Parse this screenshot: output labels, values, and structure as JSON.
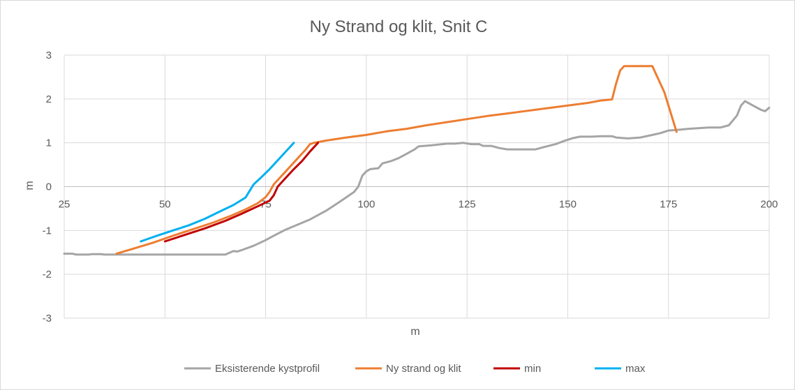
{
  "chart_data": {
    "type": "line",
    "title": "Ny Strand og klit, Snit C",
    "xlabel": "m",
    "ylabel": "m",
    "xlim": [
      25,
      200
    ],
    "ylim": [
      -3,
      3
    ],
    "x_ticks": [
      25,
      50,
      75,
      100,
      125,
      150,
      175,
      200
    ],
    "y_ticks": [
      3,
      2,
      1,
      0,
      -1,
      -2,
      -3
    ],
    "grid": true,
    "legend_position": "bottom",
    "colors": {
      "existing": "#a5a5a5",
      "new": "#ed7d31",
      "min": "#c00000",
      "max": "#00b0f0",
      "grid": "#d9d9d9"
    },
    "series": [
      {
        "name": "Eksisterende kystprofil",
        "color": "#a5a5a5",
        "points": [
          [
            25,
            -1.53
          ],
          [
            27,
            -1.53
          ],
          [
            28,
            -1.55
          ],
          [
            31,
            -1.55
          ],
          [
            32,
            -1.54
          ],
          [
            34,
            -1.54
          ],
          [
            35,
            -1.55
          ],
          [
            50,
            -1.55
          ],
          [
            65,
            -1.55
          ],
          [
            67,
            -1.47
          ],
          [
            68,
            -1.48
          ],
          [
            69,
            -1.45
          ],
          [
            72,
            -1.35
          ],
          [
            75,
            -1.22
          ],
          [
            77,
            -1.12
          ],
          [
            80,
            -0.98
          ],
          [
            86,
            -0.75
          ],
          [
            90,
            -0.55
          ],
          [
            93,
            -0.37
          ],
          [
            97,
            -0.12
          ],
          [
            98,
            0.0
          ],
          [
            99,
            0.25
          ],
          [
            100,
            0.35
          ],
          [
            101,
            0.4
          ],
          [
            103,
            0.42
          ],
          [
            104,
            0.53
          ],
          [
            106,
            0.58
          ],
          [
            108,
            0.65
          ],
          [
            110,
            0.75
          ],
          [
            112,
            0.85
          ],
          [
            113,
            0.92
          ],
          [
            116,
            0.94
          ],
          [
            120,
            0.98
          ],
          [
            122,
            0.98
          ],
          [
            124,
            1.0
          ],
          [
            126,
            0.97
          ],
          [
            128,
            0.97
          ],
          [
            129,
            0.93
          ],
          [
            131,
            0.93
          ],
          [
            133,
            0.88
          ],
          [
            135,
            0.85
          ],
          [
            142,
            0.85
          ],
          [
            144,
            0.9
          ],
          [
            147,
            0.97
          ],
          [
            149,
            1.04
          ],
          [
            151,
            1.1
          ],
          [
            153,
            1.14
          ],
          [
            156,
            1.14
          ],
          [
            158,
            1.15
          ],
          [
            161,
            1.15
          ],
          [
            162,
            1.12
          ],
          [
            165,
            1.1
          ],
          [
            168,
            1.12
          ],
          [
            171,
            1.18
          ],
          [
            173,
            1.22
          ],
          [
            175,
            1.28
          ],
          [
            178,
            1.3
          ],
          [
            180,
            1.32
          ],
          [
            185,
            1.35
          ],
          [
            188,
            1.35
          ],
          [
            190,
            1.4
          ],
          [
            192,
            1.62
          ],
          [
            193,
            1.85
          ],
          [
            194,
            1.95
          ],
          [
            196,
            1.85
          ],
          [
            198,
            1.75
          ],
          [
            199,
            1.72
          ],
          [
            200,
            1.8
          ]
        ]
      },
      {
        "name": "Ny strand og klit",
        "color": "#ed7d31",
        "points": [
          [
            38,
            -1.53
          ],
          [
            42,
            -1.42
          ],
          [
            47,
            -1.28
          ],
          [
            52,
            -1.12
          ],
          [
            57,
            -0.97
          ],
          [
            62,
            -0.82
          ],
          [
            66,
            -0.68
          ],
          [
            70,
            -0.52
          ],
          [
            73,
            -0.38
          ],
          [
            75,
            -0.24
          ],
          [
            76,
            -0.12
          ],
          [
            77,
            0.05
          ],
          [
            79,
            0.25
          ],
          [
            81,
            0.45
          ],
          [
            83,
            0.65
          ],
          [
            85,
            0.85
          ],
          [
            86,
            0.97
          ],
          [
            87,
            1.0
          ],
          [
            90,
            1.05
          ],
          [
            95,
            1.12
          ],
          [
            100,
            1.18
          ],
          [
            105,
            1.26
          ],
          [
            110,
            1.32
          ],
          [
            115,
            1.4
          ],
          [
            120,
            1.47
          ],
          [
            125,
            1.54
          ],
          [
            130,
            1.61
          ],
          [
            135,
            1.67
          ],
          [
            140,
            1.73
          ],
          [
            145,
            1.79
          ],
          [
            150,
            1.85
          ],
          [
            155,
            1.91
          ],
          [
            158,
            1.96
          ],
          [
            161,
            1.99
          ],
          [
            162,
            2.35
          ],
          [
            163,
            2.65
          ],
          [
            164,
            2.75
          ],
          [
            171,
            2.75
          ],
          [
            174,
            2.15
          ],
          [
            177,
            1.25
          ]
        ]
      },
      {
        "name": "min",
        "color": "#c00000",
        "points": [
          [
            50,
            -1.25
          ],
          [
            55,
            -1.1
          ],
          [
            60,
            -0.95
          ],
          [
            65,
            -0.78
          ],
          [
            69,
            -0.62
          ],
          [
            73,
            -0.45
          ],
          [
            76,
            -0.32
          ],
          [
            77,
            -0.2
          ],
          [
            78,
            0.0
          ],
          [
            80,
            0.2
          ],
          [
            82,
            0.4
          ],
          [
            84,
            0.58
          ],
          [
            86,
            0.8
          ],
          [
            88,
            1.0
          ]
        ]
      },
      {
        "name": "max",
        "color": "#00b0f0",
        "points": [
          [
            44,
            -1.25
          ],
          [
            48,
            -1.12
          ],
          [
            52,
            -1.0
          ],
          [
            56,
            -0.88
          ],
          [
            60,
            -0.73
          ],
          [
            64,
            -0.55
          ],
          [
            67,
            -0.42
          ],
          [
            70,
            -0.25
          ],
          [
            71,
            -0.1
          ],
          [
            72,
            0.05
          ],
          [
            74,
            0.22
          ],
          [
            76,
            0.4
          ],
          [
            78,
            0.6
          ],
          [
            80,
            0.8
          ],
          [
            82,
            1.0
          ]
        ]
      }
    ]
  }
}
